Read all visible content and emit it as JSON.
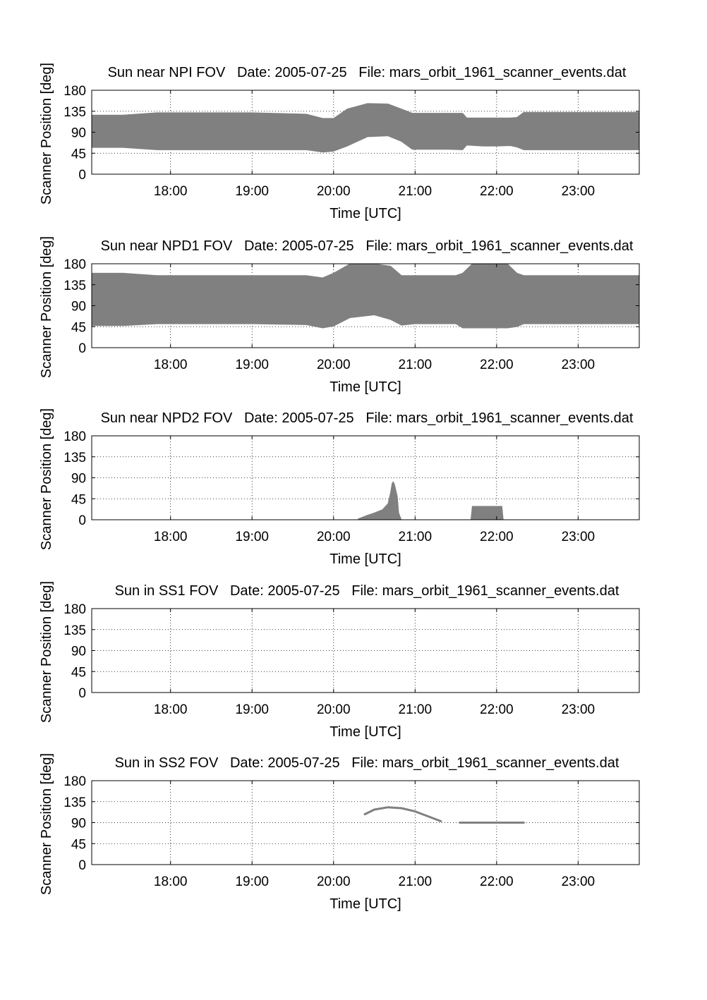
{
  "chart_data": [
    {
      "type": "area",
      "title": "Sun near NPI FOV   Date: 2005-07-25   File: mars_orbit_1961_scanner_events.dat",
      "xlabel": "Time [UTC]",
      "ylabel": "Scanner Position [deg]",
      "xlim": [
        "17:02",
        "23:45"
      ],
      "ylim": [
        0,
        180
      ],
      "x_ticks": [
        "18:00",
        "19:00",
        "20:00",
        "21:00",
        "22:00",
        "23:00"
      ],
      "y_ticks": [
        0,
        45,
        90,
        135,
        180
      ],
      "grid": true,
      "color": "#808080",
      "bands": [
        {
          "x": [
            "17:02",
            "17:25",
            "17:50",
            "18:00",
            "19:00",
            "19:40",
            "19:52",
            "20:00",
            "20:10",
            "20:25",
            "20:40",
            "20:50",
            "20:58",
            "21:10",
            "21:25",
            "21:35",
            "21:38",
            "21:50",
            "22:00",
            "22:10",
            "22:15",
            "22:20",
            "23:00",
            "23:45"
          ],
          "low": [
            57,
            57,
            52,
            52,
            52,
            52,
            47,
            49,
            60,
            80,
            82,
            70,
            53,
            53,
            53,
            52,
            62,
            60,
            60,
            61,
            58,
            52,
            52,
            52
          ],
          "high": [
            127,
            127,
            132,
            132,
            132,
            129,
            120,
            120,
            140,
            152,
            151,
            140,
            131,
            131,
            131,
            131,
            121,
            121,
            121,
            121,
            122,
            133,
            133,
            133
          ]
        }
      ]
    },
    {
      "type": "area",
      "title": "Sun near NPD1 FOV   Date: 2005-07-25   File: mars_orbit_1961_scanner_events.dat",
      "xlabel": "Time [UTC]",
      "ylabel": "Scanner Position [deg]",
      "xlim": [
        "17:02",
        "23:45"
      ],
      "ylim": [
        0,
        180
      ],
      "x_ticks": [
        "18:00",
        "19:00",
        "20:00",
        "21:00",
        "22:00",
        "23:00"
      ],
      "y_ticks": [
        0,
        45,
        90,
        135,
        180
      ],
      "grid": true,
      "color": "#808080",
      "bands": [
        {
          "x": [
            "17:02",
            "17:25",
            "17:50",
            "18:00",
            "19:00",
            "19:40",
            "19:52",
            "20:00",
            "20:12",
            "20:30",
            "20:42",
            "20:50",
            "21:00",
            "21:30",
            "21:35",
            "21:42",
            "22:00",
            "22:08",
            "22:15",
            "22:20",
            "23:00",
            "23:45"
          ],
          "low": [
            47,
            47,
            51,
            51,
            51,
            49,
            42,
            46,
            64,
            70,
            60,
            48,
            51,
            51,
            42,
            42,
            42,
            42,
            45,
            51,
            51,
            51
          ],
          "high": [
            160,
            160,
            155,
            155,
            155,
            155,
            150,
            160,
            180,
            180,
            175,
            155,
            155,
            155,
            160,
            180,
            180,
            180,
            160,
            155,
            155,
            155
          ]
        }
      ]
    },
    {
      "type": "area",
      "title": "Sun near NPD2 FOV   Date: 2005-07-25   File: mars_orbit_1961_scanner_events.dat",
      "xlabel": "Time [UTC]",
      "ylabel": "Scanner Position [deg]",
      "xlim": [
        "17:02",
        "23:45"
      ],
      "ylim": [
        0,
        180
      ],
      "x_ticks": [
        "18:00",
        "19:00",
        "20:00",
        "21:00",
        "22:00",
        "23:00"
      ],
      "y_ticks": [
        0,
        45,
        90,
        135,
        180
      ],
      "grid": true,
      "color": "#808080",
      "bands": [
        {
          "x": [
            "20:18",
            "20:25",
            "20:30",
            "20:36",
            "20:40",
            "20:42",
            "20:43",
            "20:44",
            "20:45",
            "20:47",
            "20:48",
            "20:50"
          ],
          "low": [
            0,
            0,
            0,
            0,
            0,
            0,
            0,
            0,
            0,
            0,
            0,
            0
          ],
          "high": [
            2,
            10,
            15,
            22,
            35,
            60,
            78,
            82,
            75,
            50,
            15,
            0
          ]
        },
        {
          "x": [
            "21:41",
            "21:42",
            "22:04",
            "22:05"
          ],
          "low": [
            0,
            0,
            0,
            0
          ],
          "high": [
            0,
            29,
            29,
            0
          ]
        }
      ]
    },
    {
      "type": "area",
      "title": "Sun in SS1 FOV   Date: 2005-07-25   File: mars_orbit_1961_scanner_events.dat",
      "xlabel": "Time [UTC]",
      "ylabel": "Scanner Position [deg]",
      "xlim": [
        "17:02",
        "23:45"
      ],
      "ylim": [
        0,
        180
      ],
      "x_ticks": [
        "18:00",
        "19:00",
        "20:00",
        "21:00",
        "22:00",
        "23:00"
      ],
      "y_ticks": [
        0,
        45,
        90,
        135,
        180
      ],
      "grid": true,
      "color": "#808080",
      "bands": []
    },
    {
      "type": "line",
      "title": "Sun in SS2 FOV   Date: 2005-07-25   File: mars_orbit_1961_scanner_events.dat",
      "xlabel": "Time [UTC]",
      "ylabel": "Scanner Position [deg]",
      "xlim": [
        "17:02",
        "23:45"
      ],
      "ylim": [
        0,
        180
      ],
      "x_ticks": [
        "18:00",
        "19:00",
        "20:00",
        "21:00",
        "22:00",
        "23:00"
      ],
      "y_ticks": [
        0,
        45,
        90,
        135,
        180
      ],
      "grid": true,
      "color": "#808080",
      "series": [
        {
          "x": [
            "20:23",
            "20:30",
            "20:40",
            "20:50",
            "21:00",
            "21:10",
            "21:19"
          ],
          "y": [
            108,
            118,
            123,
            121,
            114,
            103,
            93
          ]
        },
        {
          "x": [
            "21:33",
            "21:45",
            "22:00",
            "22:15",
            "22:20"
          ],
          "y": [
            90,
            90,
            90,
            90,
            90
          ]
        }
      ]
    }
  ]
}
